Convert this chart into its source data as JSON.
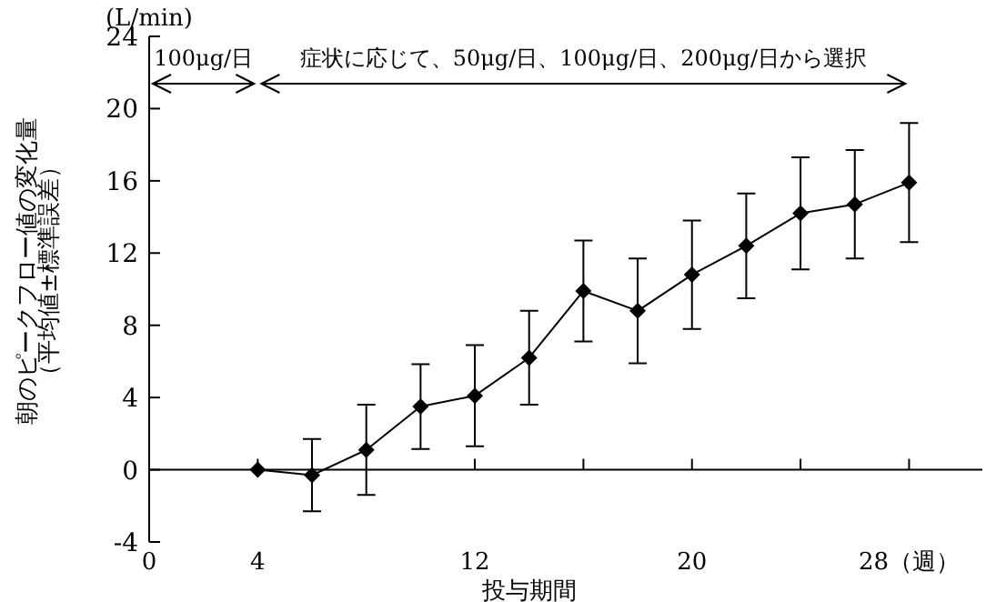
{
  "chart_data": {
    "type": "line",
    "xlabel": "投与期間",
    "ylabel": "朝のピークフロー値の変化量（平均値±標準誤差）",
    "annotations": [
      "(L/min)",
      "100μg/日",
      "症状に応じて、50μg/日、100μg/日、200μg/日から選択"
    ],
    "xlim": [
      0,
      30.7
    ],
    "xticks": [
      0,
      4,
      12,
      {
        "value": 16,
        "label": null
      },
      20,
      {
        "value": 24,
        "label": null
      },
      {
        "value": 28,
        "label": "28（週）"
      }
    ],
    "ylim": [
      -4,
      24
    ],
    "yticks": [
      -4,
      0,
      4,
      8,
      12,
      16,
      20,
      24
    ],
    "marker": "diamond",
    "color": "#000000",
    "x": [
      4,
      6,
      8,
      10,
      12,
      14,
      16,
      18,
      20,
      22,
      24,
      26,
      28
    ],
    "values": [
      0,
      -0.3,
      1.1,
      3.5,
      4.1,
      6.2,
      9.9,
      8.8,
      10.8,
      12.4,
      14.2,
      14.7,
      15.9
    ],
    "errors": [
      null,
      2.0,
      2.5,
      2.35,
      2.8,
      2.6,
      2.8,
      2.9,
      3.0,
      2.9,
      3.1,
      3.0,
      3.3
    ]
  }
}
